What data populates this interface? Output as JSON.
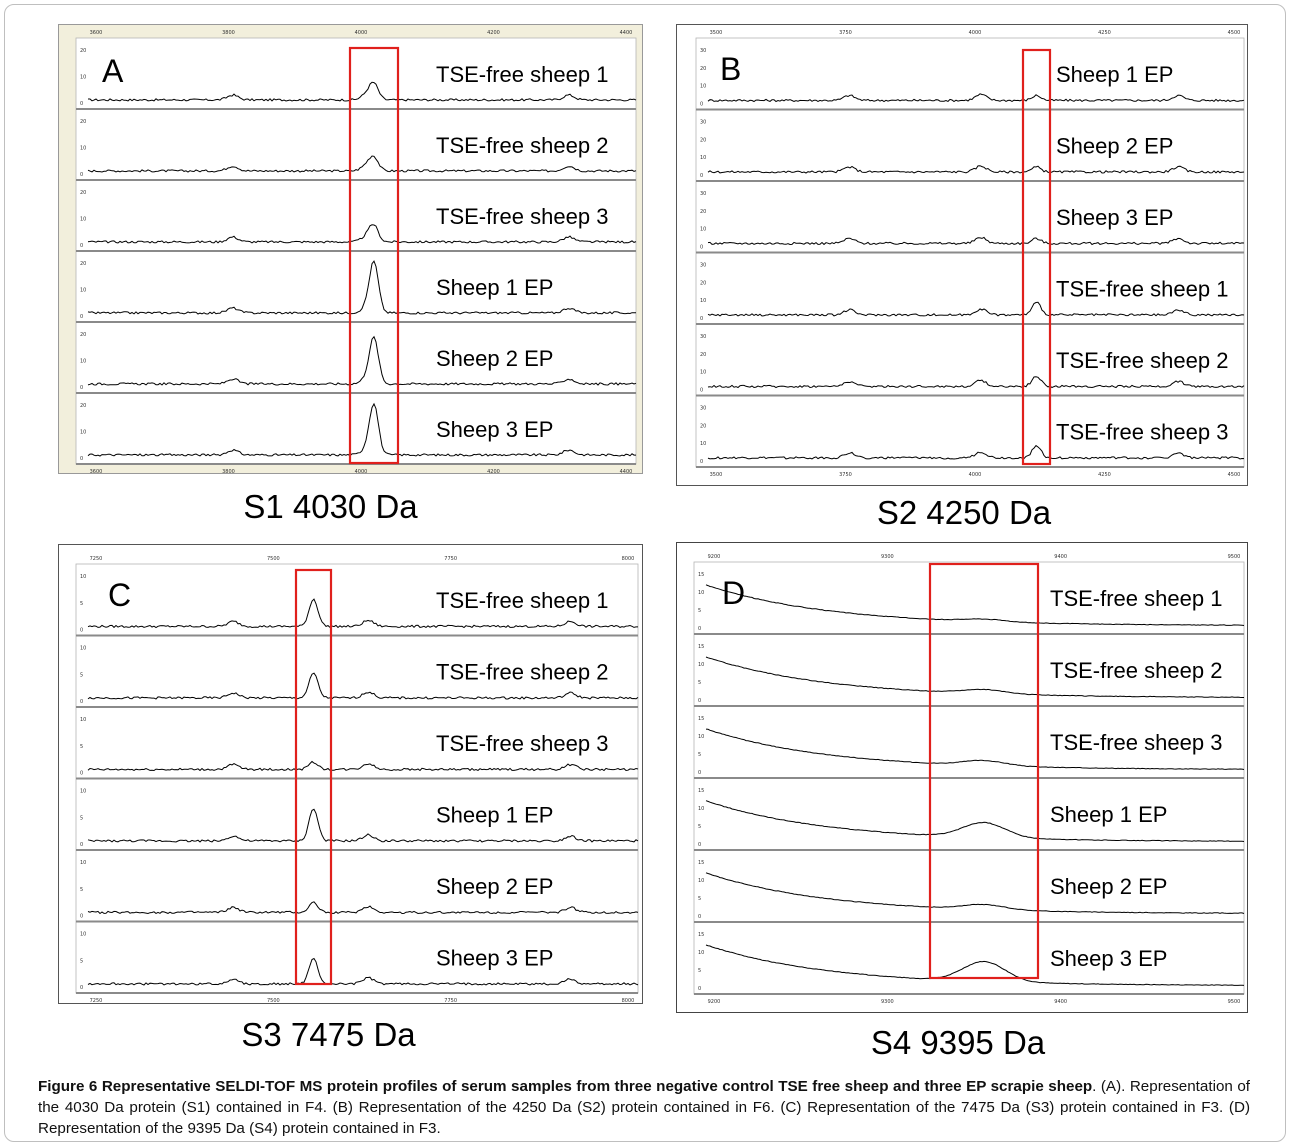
{
  "panels": [
    {
      "id": "A",
      "letter": "A",
      "caption": "S1 4030 Da",
      "frame_bg": "#f2efdc",
      "x_ticks": [
        "3600",
        "3800",
        "4000",
        "4200",
        "4400"
      ],
      "y_ticks": [
        "20",
        "10",
        "0"
      ],
      "rows": [
        {
          "label": "TSE-free sheep 1",
          "peak": 0.3
        },
        {
          "label": "TSE-free sheep 2",
          "peak": 0.25
        },
        {
          "label": "TSE-free sheep 3",
          "peak": 0.3
        },
        {
          "label": "Sheep 1 EP",
          "peak": 1.0
        },
        {
          "label": "Sheep 2 EP",
          "peak": 0.9
        },
        {
          "label": "Sheep 3 EP",
          "peak": 1.0
        }
      ]
    },
    {
      "id": "B",
      "letter": "B",
      "caption": "S2 4250 Da",
      "frame_bg": "#ffffff",
      "x_ticks": [
        "3500",
        "3750",
        "4000",
        "4250",
        "4500"
      ],
      "y_ticks": [
        "30",
        "20",
        "10",
        "0"
      ],
      "rows": [
        {
          "label": "Sheep 1 EP",
          "peak": 0.1
        },
        {
          "label": "Sheep 2 EP",
          "peak": 0.1
        },
        {
          "label": "Sheep 3 EP",
          "peak": 0.1
        },
        {
          "label": "TSE-free sheep 1",
          "peak": 0.25
        },
        {
          "label": "TSE-free sheep 2",
          "peak": 0.2
        },
        {
          "label": "TSE-free sheep 3",
          "peak": 0.25
        }
      ]
    },
    {
      "id": "C",
      "letter": "C",
      "caption": "S3 7475 Da",
      "frame_bg": "#ffffff",
      "x_ticks": [
        "7250",
        "7500",
        "7750",
        "8000"
      ],
      "y_ticks": [
        "10",
        "5",
        "0"
      ],
      "rows": [
        {
          "label": "TSE-free sheep 1",
          "peak": 0.55
        },
        {
          "label": "TSE-free sheep 2",
          "peak": 0.5
        },
        {
          "label": "TSE-free sheep 3",
          "peak": 0.15
        },
        {
          "label": "Sheep 1 EP",
          "peak": 0.65
        },
        {
          "label": "Sheep 2 EP",
          "peak": 0.2
        },
        {
          "label": "Sheep 3 EP",
          "peak": 0.5
        }
      ]
    },
    {
      "id": "D",
      "letter": "D",
      "caption": "S4 9395 Da",
      "frame_bg": "#ffffff",
      "x_ticks": [
        "9200",
        "9300",
        "9400",
        "9500"
      ],
      "y_ticks": [
        "15",
        "10",
        "5",
        "0"
      ],
      "rows": [
        {
          "label": "TSE-free sheep 1",
          "peak": 0.05
        },
        {
          "label": "TSE-free sheep 2",
          "peak": 0.08
        },
        {
          "label": "TSE-free sheep 3",
          "peak": 0.1
        },
        {
          "label": "Sheep 1 EP",
          "peak": 0.3
        },
        {
          "label": "Sheep 2 EP",
          "peak": 0.1
        },
        {
          "label": "Sheep 3 EP",
          "peak": 0.4
        }
      ]
    }
  ],
  "caption": {
    "figure_label": "Figure 6",
    "title": "Representative SELDI-TOF MS protein profiles of serum samples from three negative control TSE free sheep and three EP scrapie sheep",
    "body": ". (A). Representation of the 4030 Da protein (S1) contained in F4. (B) Representation of the 4250 Da (S2) protein contained in F6. (C) Representation of the 7475 Da (S3) protein contained in F3. (D) Representation of the 9395 Da (S4) protein contained in F3."
  },
  "colors": {
    "highlight_box": "#e0201c",
    "trace": "#000000",
    "divider": "#9a9a9a"
  }
}
